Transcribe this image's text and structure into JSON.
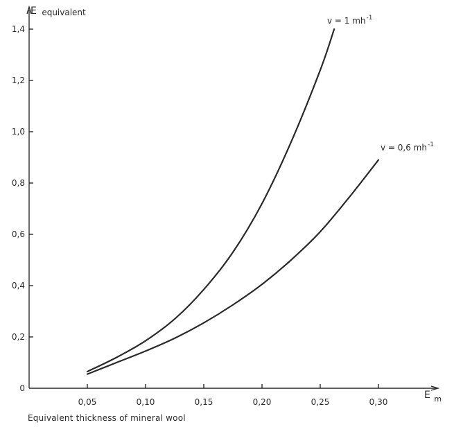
{
  "caption": "Equivalent thickness of mineral wool",
  "chart_data": {
    "type": "line",
    "title": "",
    "ylabel_main": "E",
    "ylabel_sub": "equivalent",
    "xlabel_main": "E",
    "xlabel_sub": "m",
    "xlim": [
      0,
      0.31
    ],
    "ylim": [
      0,
      1.48
    ],
    "x_ticks": [
      0.05,
      0.1,
      0.15,
      0.2,
      0.25,
      0.3
    ],
    "x_tick_labels": [
      "0,05",
      "0,10",
      "0,15",
      "0,20",
      "0,25",
      "0,30"
    ],
    "y_ticks": [
      0,
      0.2,
      0.4,
      0.6,
      0.8,
      1.0,
      1.2,
      1.4
    ],
    "y_tick_labels": [
      "0",
      "0,2",
      "0,4",
      "0,6",
      "0,8",
      "1,0",
      "1,2",
      "1,4"
    ],
    "grid": false,
    "series": [
      {
        "name": "v = 1 mh",
        "name_sup": "-1",
        "x": [
          0.05,
          0.075,
          0.1,
          0.125,
          0.15,
          0.175,
          0.2,
          0.225,
          0.25,
          0.262
        ],
        "values": [
          0.065,
          0.12,
          0.185,
          0.27,
          0.385,
          0.53,
          0.72,
          0.96,
          1.24,
          1.4
        ]
      },
      {
        "name": "v = 0,6 mh",
        "name_sup": "-1",
        "x": [
          0.05,
          0.075,
          0.1,
          0.125,
          0.15,
          0.175,
          0.2,
          0.225,
          0.25,
          0.275,
          0.3
        ],
        "values": [
          0.055,
          0.1,
          0.145,
          0.195,
          0.255,
          0.325,
          0.405,
          0.5,
          0.61,
          0.745,
          0.89
        ]
      }
    ]
  }
}
